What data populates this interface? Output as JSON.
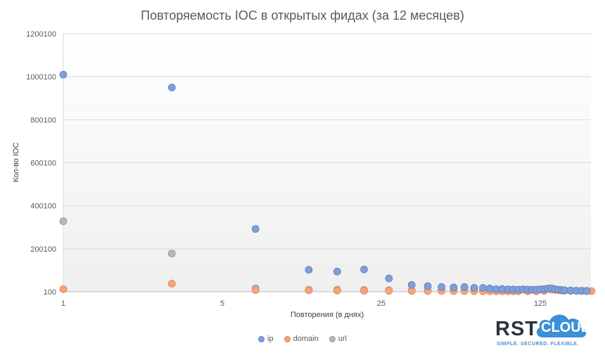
{
  "chart_data": {
    "type": "scatter",
    "title": "Повторяемость IOC в открытых фидах (за 12 месяцев)",
    "xlabel": "Повторения (в днях)",
    "ylabel": "Кол-во IOC",
    "x_scale": "log5",
    "x_ticks": [
      "1",
      "5",
      "25",
      "125"
    ],
    "y_ticks": [
      "100",
      "200100",
      "400100",
      "600100",
      "800100",
      "1000100",
      "1200100"
    ],
    "ylim": [
      100,
      1200100
    ],
    "xlim": [
      1,
      300
    ],
    "grid": "horizontal",
    "legend_position": "bottom",
    "series": [
      {
        "name": "ip",
        "color": "#7f9fd9",
        "points": [
          [
            1,
            1010000
          ],
          [
            3,
            950000
          ],
          [
            7,
            292000
          ],
          [
            12,
            102000
          ],
          [
            16,
            94000
          ],
          [
            21,
            104000
          ],
          [
            27,
            62000
          ],
          [
            34,
            32000
          ],
          [
            40,
            26000
          ],
          [
            46,
            22000
          ],
          [
            52,
            20000
          ],
          [
            58,
            22000
          ],
          [
            64,
            18000
          ],
          [
            70,
            18000
          ],
          [
            75,
            15000
          ],
          [
            80,
            12000
          ],
          [
            85,
            13000
          ],
          [
            90,
            11000
          ],
          [
            95,
            10500
          ],
          [
            100,
            10000
          ],
          [
            105,
            11000
          ],
          [
            110,
            10000
          ],
          [
            115,
            9500
          ],
          [
            120,
            10000
          ],
          [
            125,
            11000
          ],
          [
            130,
            12000
          ],
          [
            135,
            14000
          ],
          [
            140,
            16000
          ],
          [
            145,
            12000
          ],
          [
            150,
            10000
          ],
          [
            155,
            8000
          ],
          [
            160,
            7000
          ],
          [
            170,
            6000
          ],
          [
            180,
            5000
          ],
          [
            190,
            5000
          ],
          [
            200,
            4000
          ],
          [
            220,
            3000
          ],
          [
            240,
            2000
          ],
          [
            260,
            2500
          ],
          [
            280,
            4000
          ]
        ]
      },
      {
        "name": "domain",
        "color": "#f4a57a",
        "points": [
          [
            1,
            12000
          ],
          [
            3,
            38000
          ],
          [
            7,
            8000
          ],
          [
            12,
            7000
          ],
          [
            16,
            6000
          ],
          [
            21,
            5000
          ],
          [
            27,
            4500
          ],
          [
            34,
            4000
          ],
          [
            40,
            3500
          ],
          [
            46,
            3500
          ],
          [
            52,
            3000
          ],
          [
            58,
            3000
          ],
          [
            64,
            2800
          ],
          [
            70,
            2500
          ],
          [
            75,
            2500
          ],
          [
            80,
            2400
          ],
          [
            85,
            2400
          ],
          [
            90,
            2300
          ],
          [
            95,
            2200
          ],
          [
            100,
            2200
          ],
          [
            110,
            2100
          ],
          [
            120,
            2000
          ],
          [
            130,
            4000
          ],
          [
            135,
            15000
          ],
          [
            140,
            10000
          ],
          [
            145,
            9000
          ],
          [
            150,
            8000
          ],
          [
            155,
            6000
          ],
          [
            160,
            5000
          ],
          [
            170,
            4000
          ],
          [
            180,
            4000
          ],
          [
            190,
            3500
          ],
          [
            200,
            3000
          ],
          [
            210,
            3000
          ],
          [
            220,
            2500
          ],
          [
            240,
            2500
          ],
          [
            250,
            2000
          ]
        ]
      },
      {
        "name": "url",
        "color": "#b7b7b7",
        "points": [
          [
            1,
            328000
          ],
          [
            3,
            178000
          ],
          [
            7,
            16000
          ],
          [
            12,
            9000
          ],
          [
            16,
            9000
          ],
          [
            21,
            8000
          ],
          [
            27,
            7000
          ],
          [
            34,
            6000
          ],
          [
            40,
            5000
          ],
          [
            46,
            5000
          ],
          [
            52,
            4500
          ],
          [
            58,
            4500
          ],
          [
            64,
            4000
          ],
          [
            70,
            4000
          ],
          [
            75,
            3500
          ],
          [
            80,
            3500
          ],
          [
            85,
            3500
          ],
          [
            90,
            3000
          ],
          [
            95,
            3000
          ],
          [
            100,
            3000
          ],
          [
            110,
            2800
          ],
          [
            120,
            2800
          ]
        ]
      }
    ]
  },
  "logo": {
    "rst": "RST",
    "cloud": "CLOUD",
    "tagline": "SIMPLE. SECURED. FLEXIBLE."
  }
}
